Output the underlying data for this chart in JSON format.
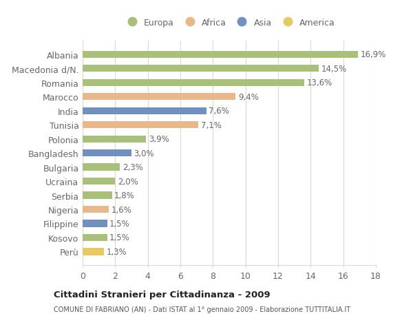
{
  "categories": [
    "Albania",
    "Macedonia d/N.",
    "Romania",
    "Marocco",
    "India",
    "Tunisia",
    "Polonia",
    "Bangladesh",
    "Bulgaria",
    "Ucraina",
    "Serbia",
    "Nigeria",
    "Filippine",
    "Kosovo",
    "Perù"
  ],
  "values": [
    16.9,
    14.5,
    13.6,
    9.4,
    7.6,
    7.1,
    3.9,
    3.0,
    2.3,
    2.0,
    1.8,
    1.6,
    1.5,
    1.5,
    1.3
  ],
  "continents": [
    "Europa",
    "Europa",
    "Europa",
    "Africa",
    "Asia",
    "Africa",
    "Europa",
    "Asia",
    "Europa",
    "Europa",
    "Europa",
    "Africa",
    "Asia",
    "Europa",
    "America"
  ],
  "colors": {
    "Europa": "#a8c07a",
    "Africa": "#e8b88a",
    "Asia": "#7090c0",
    "America": "#e8c860"
  },
  "legend_labels": [
    "Europa",
    "Africa",
    "Asia",
    "America"
  ],
  "xlim": [
    0,
    18
  ],
  "xticks": [
    0,
    2,
    4,
    6,
    8,
    10,
    12,
    14,
    16,
    18
  ],
  "title": "Cittadini Stranieri per Cittadinanza - 2009",
  "subtitle": "COMUNE DI FABRIANO (AN) - Dati ISTAT al 1° gennaio 2009 - Elaborazione TUTTITALIA.IT",
  "bg_color": "#ffffff",
  "grid_color": "#d8d8d8",
  "bar_height": 0.5,
  "label_fontsize": 8.5,
  "tick_fontsize": 9,
  "label_color": "#666666",
  "tick_color": "#666666"
}
